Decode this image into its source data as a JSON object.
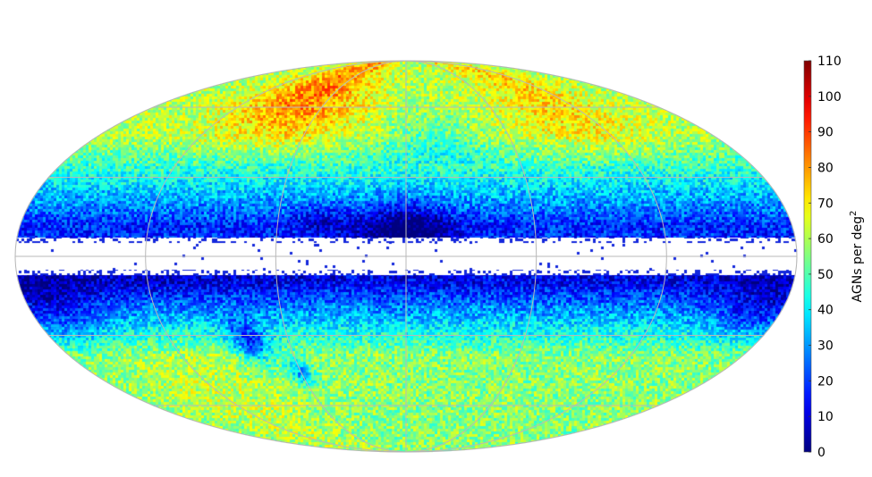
{
  "chart_data": {
    "type": "heatmap",
    "projection": "Mollweide all-sky",
    "title": "",
    "grid": true,
    "colormap": "jet",
    "colorbar": {
      "label_main": "AGNs per deg",
      "label_sup": "2",
      "range": [
        0,
        110
      ],
      "ticks": [
        0,
        10,
        20,
        30,
        40,
        50,
        60,
        70,
        80,
        90,
        100,
        110
      ],
      "tick_labels": [
        "0",
        "10",
        "20",
        "30",
        "40",
        "50",
        "60",
        "70",
        "80",
        "90",
        "100",
        "110"
      ],
      "placement": "right"
    },
    "graticule": {
      "latitudes_deg": [
        -60,
        -30,
        0,
        30,
        60
      ],
      "longitudes_deg": [
        -120,
        -60,
        0,
        60,
        120
      ]
    },
    "masked_band_lat_deg": [
      -7,
      7
    ],
    "features": [
      {
        "name": "north-high-density-lobes",
        "lat_deg": [
          35,
          90
        ],
        "value": 75
      },
      {
        "name": "south-moderate-density",
        "lat_deg": [
          -90,
          -20
        ],
        "value": 55
      },
      {
        "name": "galactic-plane-low-density",
        "lat_deg": [
          -15,
          15
        ],
        "value": 15
      },
      {
        "name": "galactic-center-bulge",
        "lon_deg": 0,
        "lat_deg": 15,
        "value": 10
      },
      {
        "name": "lmc-hole",
        "lon_deg": -80,
        "lat_deg": -33,
        "value": 15
      },
      {
        "name": "smc-hole",
        "lon_deg": -60,
        "lat_deg": -45,
        "value": 18
      }
    ]
  }
}
